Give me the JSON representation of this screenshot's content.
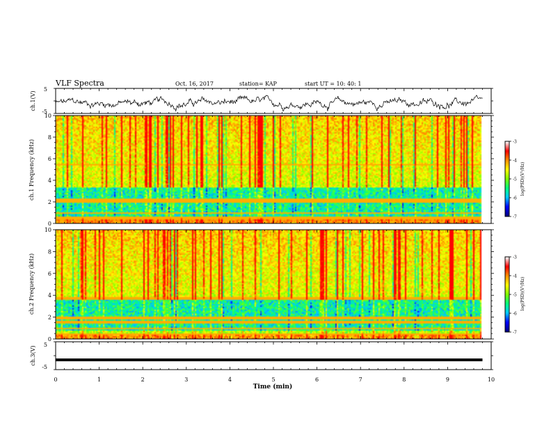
{
  "header": {
    "title": "VLF Spectra",
    "date": "Oct. 16, 2017",
    "station": "station= KAP",
    "start_time": "start  UT =   10: 40: 1"
  },
  "chart_data": [
    {
      "type": "line",
      "name": "ch1-waveform",
      "ylabel": "ch.1(V)",
      "ylim": [
        -5,
        5
      ],
      "yticks": [
        "5",
        "-5"
      ],
      "xlim": [
        0,
        10
      ],
      "note_values": "noisy waveform spanning approximately -4 to 2 V across 0 to 9.8 min"
    },
    {
      "type": "heatmap",
      "name": "ch1-spectrogram",
      "ylabel": "ch.1 Frequency (kHz)",
      "ylim": [
        0,
        10
      ],
      "yticks": [
        "0",
        "2",
        "4",
        "6",
        "8",
        "10"
      ],
      "xlim": [
        0,
        10
      ],
      "data_end_min": 9.8,
      "colorbar": {
        "label": "log(PSD)(V²/Hz)",
        "range": [
          -7,
          -3
        ],
        "ticks": [
          "-3",
          "-4",
          "-5",
          "-6",
          "-7"
        ]
      },
      "lines_khz": [
        0.3,
        0.6,
        1.0,
        2.1,
        2.3,
        5.5
      ],
      "low_power_band_khz": [
        0.6,
        3.4
      ]
    },
    {
      "type": "heatmap",
      "name": "ch2-spectrogram",
      "ylabel": "ch.2 Frequency (kHz)",
      "ylim": [
        0,
        10
      ],
      "yticks": [
        "0",
        "2",
        "4",
        "6",
        "8",
        "10"
      ],
      "xlim": [
        0,
        10
      ],
      "data_end_min": 9.8,
      "colorbar": {
        "label": "log(PSD)(V²/Hz)",
        "range": [
          -7,
          -3
        ],
        "ticks": [
          "-3",
          "-4",
          "-5",
          "-6",
          "-7"
        ]
      },
      "lines_khz": [
        0.5,
        1.0,
        1.6,
        2.0,
        3.8
      ],
      "low_power_band_khz": [
        0.8,
        3.6
      ]
    },
    {
      "type": "line",
      "name": "ch3-waveform",
      "ylabel": "ch.3(V)",
      "ylim": [
        -5,
        5
      ],
      "yticks": [
        "5",
        "-5"
      ],
      "xlim": [
        0,
        10
      ],
      "values_constant": -1.5,
      "xlabel": "Time  (min)",
      "xticks": [
        "0",
        "1",
        "2",
        "3",
        "4",
        "5",
        "6",
        "7",
        "8",
        "9",
        "10"
      ]
    }
  ],
  "colors": {
    "colormap": [
      "#000080",
      "#0000ff",
      "#00c8ff",
      "#00ff80",
      "#80ff00",
      "#ffff00",
      "#ff9000",
      "#ff0000",
      "#ffffff"
    ]
  }
}
